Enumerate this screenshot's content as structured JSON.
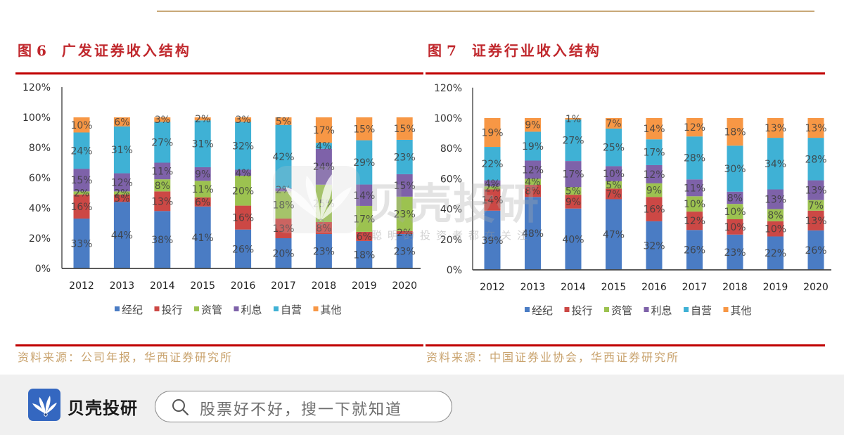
{
  "figures": [
    {
      "number": "图 6",
      "title": "广发证券收入结构",
      "source": "资料来源：公司年报，华西证券研究所"
    },
    {
      "number": "图 7",
      "title": "证券行业收入结构",
      "source": "资料来源：中国证券业协会，华西证券研究所"
    }
  ],
  "chart_data": [
    {
      "type": "bar",
      "stacked": true,
      "title": "广发证券收入结构",
      "xlabel": "",
      "ylabel": "",
      "categories": [
        "2012",
        "2013",
        "2014",
        "2015",
        "2016",
        "2017",
        "2018",
        "2019",
        "2020"
      ],
      "series": [
        {
          "name": "经纪",
          "color": "#4a7cc4",
          "values": [
            33,
            44,
            38,
            41,
            26,
            20,
            23,
            18,
            23
          ]
        },
        {
          "name": "投行",
          "color": "#cc4845",
          "values": [
            16,
            5,
            13,
            6,
            16,
            13,
            8,
            6,
            2
          ]
        },
        {
          "name": "资管",
          "color": "#9cc250",
          "values": [
            2,
            2,
            8,
            11,
            20,
            18,
            25,
            17,
            23
          ]
        },
        {
          "name": "利息",
          "color": "#7e62a9",
          "values": [
            15,
            12,
            11,
            9,
            4,
            2,
            24,
            14,
            15
          ]
        },
        {
          "name": "自营",
          "color": "#3fb1d5",
          "values": [
            24,
            31,
            27,
            31,
            32,
            42,
            4,
            29,
            23
          ]
        },
        {
          "name": "其他",
          "color": "#f79745",
          "values": [
            10,
            6,
            3,
            2,
            3,
            5,
            17,
            15,
            15
          ]
        }
      ],
      "ylim": [
        0,
        120
      ],
      "yticks": [
        0,
        20,
        40,
        60,
        80,
        100,
        120
      ],
      "ytick_labels": [
        "0%",
        "20%",
        "40%",
        "60%",
        "80%",
        "100%",
        "120%"
      ],
      "data_label_suffix": "%",
      "legend": "bottom",
      "grid": false
    },
    {
      "type": "bar",
      "stacked": true,
      "title": "证券行业收入结构",
      "xlabel": "",
      "ylabel": "",
      "categories": [
        "2012",
        "2013",
        "2014",
        "2015",
        "2016",
        "2017",
        "2018",
        "2019",
        "2020"
      ],
      "series": [
        {
          "name": "经纪",
          "color": "#4a7cc4",
          "values": [
            39,
            48,
            40,
            47,
            32,
            26,
            23,
            22,
            26
          ]
        },
        {
          "name": "投行",
          "color": "#cc4845",
          "values": [
            14,
            8,
            9,
            7,
            16,
            12,
            10,
            10,
            13
          ]
        },
        {
          "name": "资管",
          "color": "#9cc250",
          "values": [
            2,
            4,
            5,
            5,
            9,
            10,
            10,
            8,
            7
          ]
        },
        {
          "name": "利息",
          "color": "#7e62a9",
          "values": [
            4,
            12,
            17,
            10,
            12,
            11,
            8,
            13,
            13
          ]
        },
        {
          "name": "自营",
          "color": "#3fb1d5",
          "values": [
            22,
            19,
            27,
            25,
            17,
            28,
            30,
            34,
            28
          ]
        },
        {
          "name": "其他",
          "color": "#f79745",
          "values": [
            19,
            9,
            1,
            7,
            14,
            12,
            18,
            13,
            13
          ]
        }
      ],
      "ylim": [
        0,
        120
      ],
      "yticks": [
        0,
        20,
        40,
        60,
        80,
        100,
        120
      ],
      "ytick_labels": [
        "0%",
        "20%",
        "40%",
        "60%",
        "80%",
        "100%",
        "120%"
      ],
      "data_label_suffix": "%",
      "legend": "bottom",
      "grid": false
    }
  ],
  "watermark": {
    "brand": "贝壳投研",
    "slogan": "聪明的投资者都在关注"
  },
  "footer": {
    "logo_icon": "shell-fan-icon",
    "brand": "贝壳投研",
    "search_icon": "magnifier-icon",
    "search_placeholder": "股票好不好，搜一下就知道"
  },
  "colors": {
    "title_red": "#c0282d",
    "rule_red": "#c00000",
    "rule_tan": "#c8a878",
    "source_tan": "#c9a36e",
    "logo_blue": "#3467c0"
  }
}
